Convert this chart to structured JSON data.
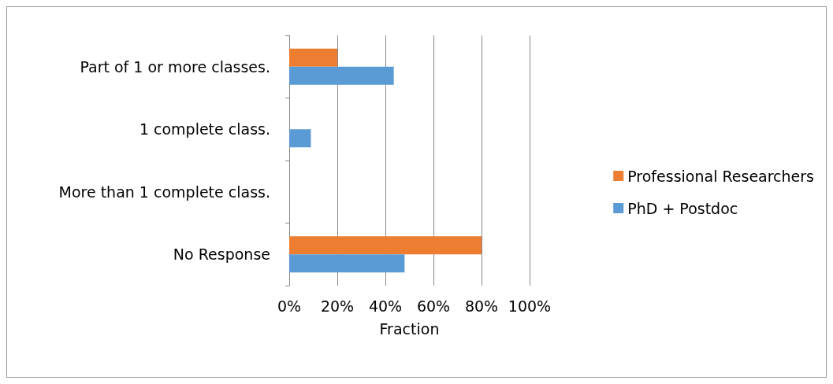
{
  "chart_data": {
    "type": "bar",
    "orientation": "horizontal",
    "xlabel": "Fraction",
    "categories": [
      "Part of 1 or more classes.",
      "1 complete class.",
      "More than 1 complete class.",
      "No Response"
    ],
    "series": [
      {
        "name": "Professional Researchers",
        "color": "#ed7d31",
        "values": [
          20,
          0,
          0,
          80
        ]
      },
      {
        "name": "PhD + Postdoc",
        "color": "#5b9bd5",
        "values": [
          43.5,
          9,
          0,
          48
        ]
      }
    ],
    "xlim": [
      0,
      100
    ],
    "xticks": [
      {
        "value": 0,
        "label": "0%"
      },
      {
        "value": 20,
        "label": "20%"
      },
      {
        "value": 40,
        "label": "40%"
      },
      {
        "value": 60,
        "label": "60%"
      },
      {
        "value": 80,
        "label": "80%"
      },
      {
        "value": 100,
        "label": "100%"
      }
    ],
    "grid": "x",
    "legend": "right"
  }
}
